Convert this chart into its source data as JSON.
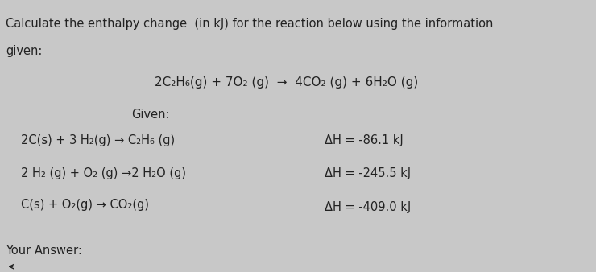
{
  "background_color": "#c8c8c8",
  "title_line1": "Calculate the enthalpy change  (in kJ) for the reaction below using the information",
  "title_line2": "given:",
  "main_reaction": "2C₂H₆(g) + 7O₂ (g)  →  4CO₂ (g) + 6H₂O (g)",
  "given_label": "Given:",
  "reaction1": "2C(s) + 3 H₂(g) → C₂H₆ (g)",
  "dh1": "ΔH = -86.1 kJ",
  "reaction2": "2 H₂ (g) + O₂ (g) →2 H₂O (g)",
  "dh2": "ΔH = -245.5 kJ",
  "reaction3": "C(s) + O₂(g) → CO₂(g)",
  "dh3": "ΔH = -409.0 kJ",
  "your_answer": "Your Answer:",
  "text_color": "#222222",
  "font_size": 10.5
}
